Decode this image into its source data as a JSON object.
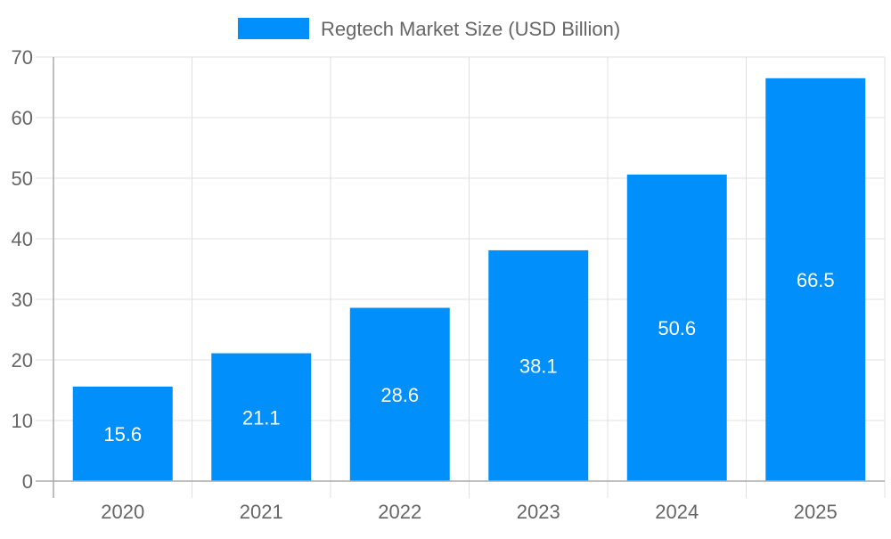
{
  "chart_data": {
    "type": "bar",
    "title": "",
    "xlabel": "",
    "ylabel": "",
    "categories": [
      "2020",
      "2021",
      "2022",
      "2023",
      "2024",
      "2025"
    ],
    "series": [
      {
        "name": "Regtech Market Size (USD Billion)",
        "values": [
          15.6,
          21.1,
          28.6,
          38.1,
          50.6,
          66.5
        ],
        "color": "#008ffb"
      }
    ],
    "data_labels": [
      "15.6",
      "21.1",
      "28.6",
      "38.1",
      "50.6",
      "66.5"
    ],
    "ylim": [
      0,
      70
    ],
    "yticks": [
      "0",
      "10",
      "20",
      "30",
      "40",
      "50",
      "60",
      "70"
    ],
    "grid": true,
    "legend": "top-center"
  }
}
